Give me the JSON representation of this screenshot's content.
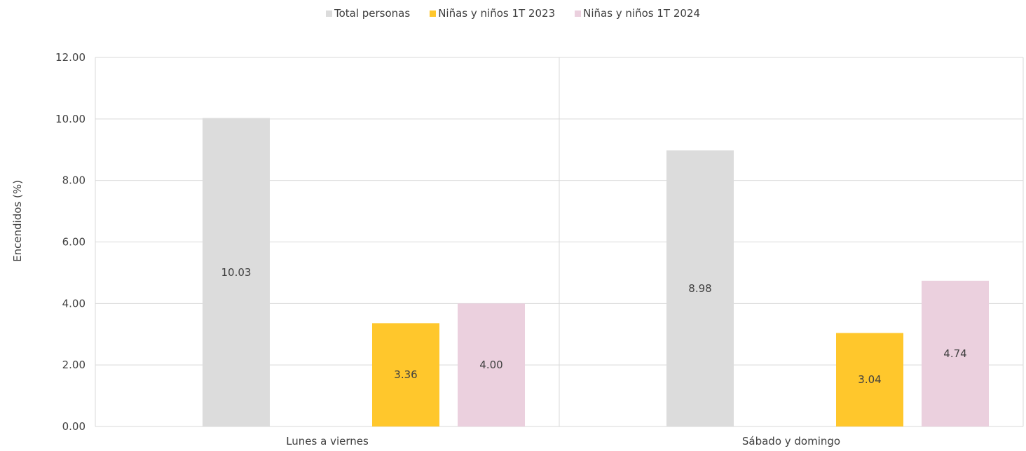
{
  "chart_data": {
    "type": "bar",
    "categories": [
      "Lunes a viernes",
      "Sábado y domingo"
    ],
    "series": [
      {
        "name": "Total personas",
        "values": [
          10.03,
          8.98
        ],
        "labels": [
          "10.03",
          "8.98"
        ],
        "color": "#dcdcdc"
      },
      {
        "name": "Niñas y niños 1T 2023",
        "values": [
          3.36,
          3.04
        ],
        "labels": [
          "3.36",
          "3.04"
        ],
        "color": "#ffc72c"
      },
      {
        "name": "Niñas y niños 1T 2024",
        "values": [
          4.0,
          4.74
        ],
        "labels": [
          "4.00",
          "4.74"
        ],
        "color": "#ebd0de"
      }
    ],
    "ylabel": "Encendidos (%)",
    "ylim": [
      0,
      12
    ],
    "yticks": [
      "0.00",
      "2.00",
      "4.00",
      "6.00",
      "8.00",
      "10.00",
      "12.00"
    ],
    "grid": true,
    "legend_position": "top-center"
  }
}
